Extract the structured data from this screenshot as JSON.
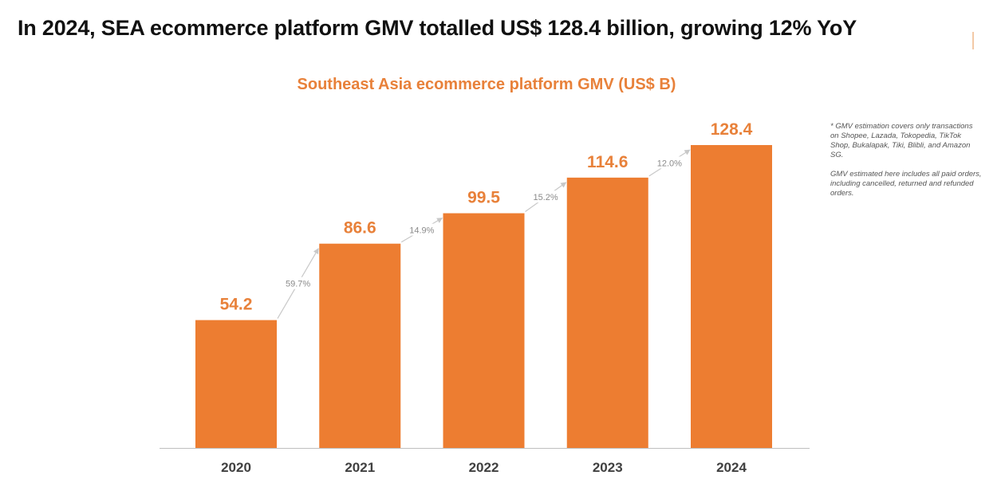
{
  "headline": "In 2024, SEA ecommerce platform GMV totalled US$ 128.4 billion, growing 12% YoY",
  "footnote": {
    "line1": "* GMV estimation covers only transactions on Shopee, Lazada, Tokopedia, TikTok Shop, Bukalapak, Tiki, Blibli, and Amazon SG.",
    "line2": "GMV estimated here includes all paid orders, including cancelled, returned and refunded orders."
  },
  "colors": {
    "bar": "#ed7d31",
    "value_label": "#e8813a",
    "growth_label": "#8a8a8a",
    "arrow": "#c8c8c8",
    "axis": "#bfbfbf",
    "tick_label": "#404040"
  },
  "chart_data": {
    "type": "bar",
    "title": "Southeast Asia ecommerce platform GMV (US$ B)",
    "xlabel": "",
    "ylabel": "",
    "categories": [
      "2020",
      "2021",
      "2022",
      "2023",
      "2024"
    ],
    "values": [
      54.2,
      86.6,
      99.5,
      114.6,
      128.4
    ],
    "value_labels": [
      "54.2",
      "86.6",
      "99.5",
      "114.6",
      "128.4"
    ],
    "growth_labels": [
      "59.7%",
      "14.9%",
      "15.2%",
      "12.0%"
    ],
    "ylim": [
      0,
      128.4
    ],
    "grid": false,
    "legend": "none"
  }
}
